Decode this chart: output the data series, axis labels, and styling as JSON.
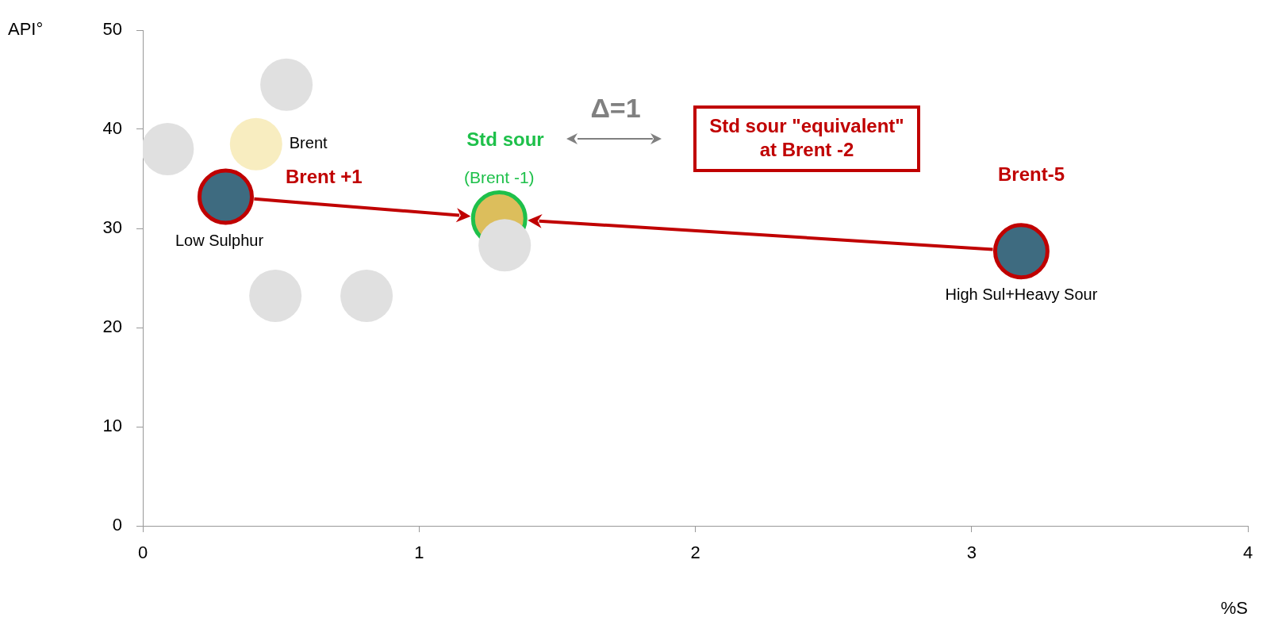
{
  "chart_data": {
    "type": "scatter",
    "xlabel": "%S",
    "ylabel": "API°",
    "xlim": [
      0,
      4
    ],
    "ylim": [
      0,
      50
    ],
    "xticks": [
      0,
      1,
      2,
      3,
      4
    ],
    "yticks": [
      0,
      10,
      20,
      30,
      40,
      50
    ],
    "grid": false,
    "legend": false,
    "marker": "circle",
    "series": [
      {
        "color": "#e0e0e0",
        "x": [
          0.09,
          0.52,
          0.48,
          0.81,
          1.31
        ],
        "values": [
          38,
          44.5,
          23.2,
          23.2,
          28.3
        ]
      },
      {
        "color": "#f8edc0",
        "x": [
          0.41
        ],
        "values": [
          38.5
        ]
      },
      {
        "color": "#3e6b80",
        "x": [
          0.3,
          3.18
        ],
        "values": [
          33.2,
          27.7
        ]
      },
      {
        "color": "#dcbe5c",
        "x": [
          1.29
        ],
        "values": [
          31
        ]
      }
    ],
    "annotations": [
      {
        "text": "Brent",
        "x": 0.41,
        "y": 38.5
      },
      {
        "text": "Low Sulphur",
        "x": 0.3,
        "y": 33.2
      },
      {
        "text": "High Sul+Heavy Sour",
        "x": 3.18,
        "y": 27.7
      },
      "Brent +1",
      "Std sour",
      {
        "text": "(Brent -1)",
        "x": 1.29,
        "y": 31
      },
      "Brent-5",
      "Δ=1",
      "Std sour \"equivalent\"\nat Brent -2"
    ]
  }
}
